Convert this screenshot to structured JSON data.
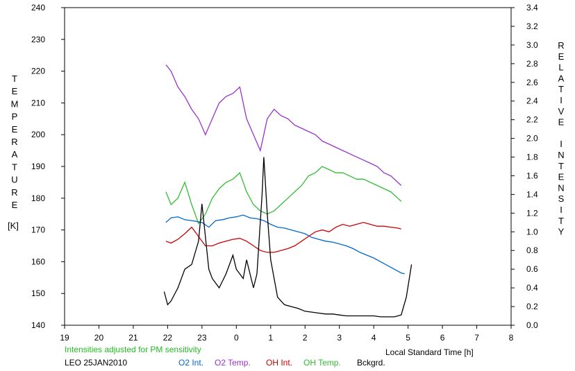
{
  "chart_data": {
    "type": "line",
    "title": "",
    "xlabel": "Local Standard Time [h]",
    "ylabel_left_letters": [
      "T",
      "E",
      "M",
      "P",
      "E",
      "R",
      "A",
      "T",
      "U",
      "R",
      "E"
    ],
    "ylabel_left_unit": "[K]",
    "ylabel_right_letters": [
      "R",
      "E",
      "L",
      "A",
      "T",
      "I",
      "V",
      "E",
      "",
      "I",
      "N",
      "T",
      "E",
      "N",
      "S",
      "I",
      "T",
      "Y"
    ],
    "x_ticks": [
      "19",
      "20",
      "21",
      "22",
      "23",
      "0",
      "1",
      "2",
      "3",
      "4",
      "5",
      "6",
      "7",
      "8"
    ],
    "x_range": [
      19,
      32
    ],
    "y_left_ticks": [
      "140",
      "150",
      "160",
      "170",
      "180",
      "190",
      "200",
      "210",
      "220",
      "230",
      "240"
    ],
    "y_left_range": [
      140,
      240
    ],
    "y_right_ticks": [
      "0.0",
      "0.2",
      "0.4",
      "0.6",
      "0.8",
      "1.0",
      "1.2",
      "1.4",
      "1.6",
      "1.8",
      "2.0",
      "2.2",
      "2.4",
      "2.6",
      "2.8",
      "3.0",
      "3.2",
      "3.4"
    ],
    "y_right_range": [
      0,
      3.4
    ],
    "grid": false,
    "note": "Intensities adjusted for PM sensitivity",
    "station": "LEO 25JAN2010",
    "series": [
      {
        "name": "O2 Int.",
        "axis": "right",
        "color": "#0066cc",
        "x": [
          21.95,
          22.1,
          22.3,
          22.5,
          22.7,
          23.0,
          23.2,
          23.4,
          23.6,
          23.8,
          24.0,
          24.2,
          24.4,
          24.6,
          24.8,
          25.0,
          25.2,
          25.4,
          25.6,
          25.8,
          26.0,
          26.2,
          26.4,
          26.6,
          26.8,
          27.0,
          27.2,
          27.4,
          27.6,
          27.8,
          28.0,
          28.2,
          28.4,
          28.6,
          28.8,
          28.9
        ],
        "y": [
          1.1,
          1.15,
          1.16,
          1.13,
          1.12,
          1.1,
          1.05,
          1.12,
          1.13,
          1.15,
          1.16,
          1.18,
          1.15,
          1.14,
          1.12,
          1.08,
          1.05,
          1.04,
          1.02,
          1.0,
          0.98,
          0.94,
          0.92,
          0.9,
          0.89,
          0.87,
          0.85,
          0.82,
          0.78,
          0.75,
          0.72,
          0.68,
          0.64,
          0.6,
          0.56,
          0.55
        ]
      },
      {
        "name": "O2 Temp.",
        "axis": "left",
        "color": "#9933cc",
        "x": [
          21.95,
          22.1,
          22.3,
          22.5,
          22.7,
          22.9,
          23.1,
          23.3,
          23.5,
          23.7,
          23.9,
          24.1,
          24.3,
          24.5,
          24.7,
          24.9,
          25.1,
          25.3,
          25.5,
          25.7,
          25.9,
          26.1,
          26.3,
          26.5,
          26.7,
          26.9,
          27.1,
          27.3,
          27.5,
          27.7,
          27.9,
          28.1,
          28.3,
          28.5,
          28.7,
          28.8
        ],
        "y": [
          222,
          220,
          215,
          212,
          208,
          205,
          200,
          205,
          210,
          212,
          213,
          215,
          205,
          200,
          195,
          205,
          208,
          206,
          205,
          203,
          202,
          201,
          200,
          198,
          197,
          196,
          195,
          194,
          193,
          192,
          191,
          190,
          188,
          187,
          185,
          184
        ]
      },
      {
        "name": "OH Int.",
        "axis": "right",
        "color": "#cc0000",
        "x": [
          21.95,
          22.1,
          22.3,
          22.5,
          22.7,
          22.9,
          23.1,
          23.3,
          23.5,
          23.7,
          23.9,
          24.1,
          24.3,
          24.5,
          24.7,
          24.9,
          25.1,
          25.3,
          25.5,
          25.7,
          25.9,
          26.1,
          26.3,
          26.5,
          26.7,
          26.9,
          27.1,
          27.3,
          27.5,
          27.7,
          27.9,
          28.1,
          28.3,
          28.5,
          28.7,
          28.8
        ],
        "y": [
          0.9,
          0.88,
          0.92,
          0.98,
          1.05,
          0.95,
          0.85,
          0.85,
          0.88,
          0.9,
          0.92,
          0.93,
          0.9,
          0.85,
          0.8,
          0.78,
          0.78,
          0.8,
          0.82,
          0.85,
          0.9,
          0.95,
          1.0,
          1.02,
          1.0,
          1.05,
          1.08,
          1.06,
          1.08,
          1.1,
          1.08,
          1.06,
          1.06,
          1.05,
          1.04,
          1.03
        ]
      },
      {
        "name": "OH Temp.",
        "axis": "left",
        "color": "#33bb33",
        "x": [
          21.95,
          22.1,
          22.3,
          22.5,
          22.7,
          22.9,
          23.1,
          23.3,
          23.5,
          23.7,
          23.9,
          24.1,
          24.3,
          24.5,
          24.7,
          24.9,
          25.1,
          25.3,
          25.5,
          25.7,
          25.9,
          26.1,
          26.3,
          26.5,
          26.7,
          26.9,
          27.1,
          27.3,
          27.5,
          27.7,
          27.9,
          28.1,
          28.3,
          28.5,
          28.7,
          28.8
        ],
        "y": [
          182,
          178,
          180,
          185,
          178,
          172,
          175,
          180,
          183,
          185,
          186,
          188,
          182,
          178,
          176,
          175,
          176,
          178,
          180,
          182,
          184,
          187,
          188,
          190,
          189,
          188,
          188,
          187,
          186,
          186,
          185,
          184,
          183,
          182,
          180,
          179
        ]
      },
      {
        "name": "Bckgrd.",
        "axis": "right",
        "color": "#000000",
        "x": [
          21.9,
          22.0,
          22.1,
          22.3,
          22.5,
          22.7,
          22.9,
          23.0,
          23.2,
          23.3,
          23.5,
          23.7,
          23.9,
          24.0,
          24.2,
          24.3,
          24.5,
          24.6,
          24.75,
          24.8,
          24.9,
          25.0,
          25.2,
          25.4,
          25.6,
          25.8,
          26.0,
          26.2,
          26.4,
          26.6,
          26.8,
          27.0,
          27.2,
          27.4,
          27.6,
          27.8,
          28.0,
          28.2,
          28.4,
          28.6,
          28.8,
          28.95,
          29.1
        ],
        "y": [
          0.36,
          0.22,
          0.26,
          0.4,
          0.6,
          0.65,
          0.9,
          1.3,
          0.6,
          0.5,
          0.4,
          0.55,
          0.75,
          0.6,
          0.5,
          0.7,
          0.4,
          0.55,
          1.4,
          1.8,
          1.2,
          0.7,
          0.3,
          0.22,
          0.2,
          0.18,
          0.15,
          0.14,
          0.13,
          0.12,
          0.12,
          0.11,
          0.1,
          0.1,
          0.1,
          0.1,
          0.1,
          0.09,
          0.09,
          0.09,
          0.11,
          0.3,
          0.65
        ]
      }
    ]
  }
}
